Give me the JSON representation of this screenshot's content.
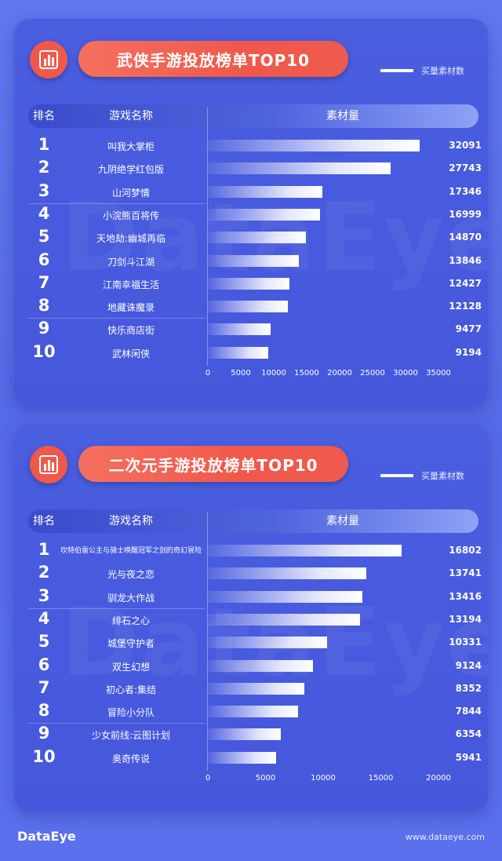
{
  "charts": [
    {
      "title": "武侠手游投放榜单TOP10",
      "legend": "买量素材数",
      "columns": {
        "rank": "排名",
        "name": "游戏名称",
        "value": "素材量"
      },
      "watermark": "DataEye",
      "axis_ticks": [
        "0",
        "5000",
        "10000",
        "15000",
        "20000",
        "25000",
        "30000",
        "35000"
      ]
    },
    {
      "title": "二次元手游投放榜单TOP10",
      "legend": "买量素材数",
      "columns": {
        "rank": "排名",
        "name": "游戏名称",
        "value": "素材量"
      },
      "watermark": "DataEye",
      "axis_ticks": [
        "0",
        "5000",
        "10000",
        "15000",
        "20000"
      ]
    }
  ],
  "chart_data": [
    {
      "type": "bar",
      "title": "武侠手游投放榜单TOP10",
      "legend": [
        "买量素材数"
      ],
      "ranks": [
        "1",
        "2",
        "3",
        "4",
        "5",
        "6",
        "7",
        "8",
        "9",
        "10"
      ],
      "categories": [
        "叫我大掌柜",
        "九阴绝学红包版",
        "山河梦情",
        "小浣熊百将传",
        "天地劫:幽城再临",
        "刀剑斗江湖",
        "江南幸福生活",
        "地藏诛魔录",
        "快乐商店街",
        "武林闲侠"
      ],
      "values": [
        32091,
        27743,
        17346,
        16999,
        14870,
        13846,
        12427,
        12128,
        9477,
        9194
      ],
      "xlim": [
        0,
        35000
      ],
      "orientation": "horizontal"
    },
    {
      "type": "bar",
      "title": "二次元手游投放榜单TOP10",
      "legend": [
        "买量素材数"
      ],
      "ranks": [
        "1",
        "2",
        "3",
        "4",
        "5",
        "6",
        "7",
        "8",
        "9",
        "10"
      ],
      "categories": [
        "坎特伯雷公主与骑士唤醒冠军之剑的奇幻冒险",
        "光与夜之恋",
        "驯龙大作战",
        "绯石之心",
        "城堡守护者",
        "双生幻想",
        "初心者:集结",
        "冒险小分队",
        "少女前线:云图计划",
        "奥奇传说"
      ],
      "values": [
        16802,
        13741,
        13416,
        13194,
        10331,
        9124,
        8352,
        7844,
        6354,
        5941
      ],
      "xlim": [
        0,
        20000
      ],
      "orientation": "horizontal"
    }
  ],
  "footer": {
    "logo": "DataEye",
    "url": "www.dataeye.com"
  },
  "colors": {
    "background": "#5a70ec",
    "card": "#4a5ee0",
    "accent": "#f0594a",
    "bar": "#ffffff"
  }
}
